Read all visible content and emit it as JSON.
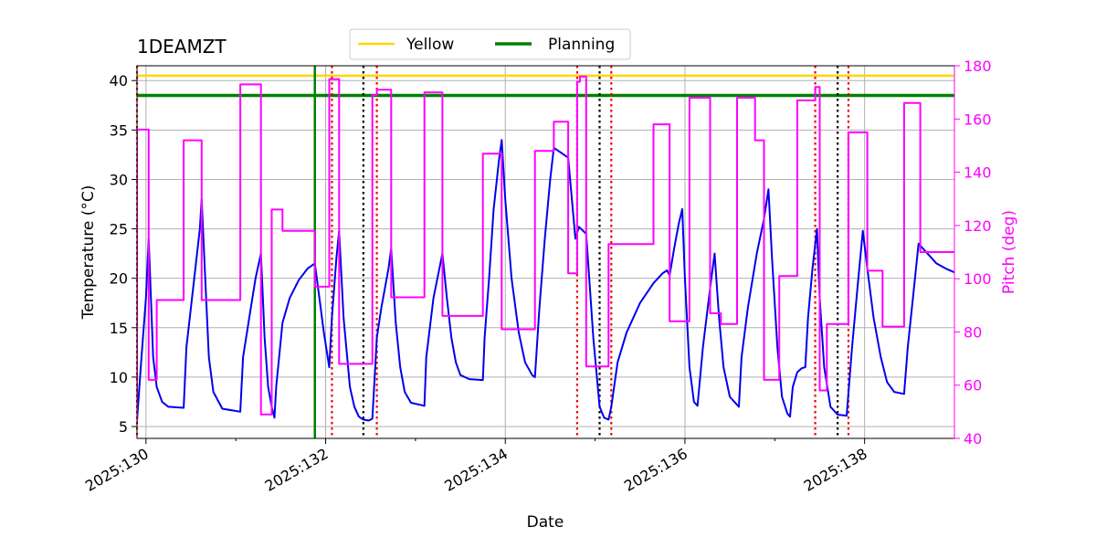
{
  "chart_data": {
    "type": "line",
    "title": "1DEAMZT",
    "xlabel": "Date",
    "ylabel": "Temperature ($^\\circ$C)",
    "ylabel_display": "Temperature (°C)",
    "y2label": "Pitch (deg)",
    "xlim": [
      129.9,
      139.0
    ],
    "ylim": [
      3.8,
      41.5
    ],
    "y2lim": [
      40,
      180
    ],
    "x_ticks": [
      {
        "value": 130,
        "label": "2025:130"
      },
      {
        "value": 132,
        "label": "2025:132"
      },
      {
        "value": 134,
        "label": "2025:134"
      },
      {
        "value": 136,
        "label": "2025:136"
      },
      {
        "value": 138,
        "label": "2025:138"
      }
    ],
    "x_minor_ticks": [
      131,
      133,
      135,
      137
    ],
    "y_ticks": [
      5,
      10,
      15,
      20,
      25,
      30,
      35,
      40
    ],
    "y2_ticks": [
      40,
      60,
      80,
      100,
      120,
      140,
      160,
      180
    ],
    "grid": true,
    "legend": {
      "placement": "top-center, above axes",
      "entries": [
        {
          "label": "Yellow",
          "color": "#ffd700"
        },
        {
          "label": "Planning",
          "color": "#008000"
        }
      ]
    },
    "limits": {
      "yellow": 40.5,
      "planning": 38.5
    },
    "planning_vline": 131.88,
    "red_dotted_vlines": [
      129.9,
      132.07,
      132.57,
      134.8,
      135.18,
      137.45,
      137.82
    ],
    "black_dotted_vlines": [
      132.42,
      135.05,
      137.7
    ],
    "series": [
      {
        "name": "Temperature",
        "axis": "left",
        "color": "#0000ee",
        "points": [
          [
            129.9,
            5.6
          ],
          [
            129.95,
            12.0
          ],
          [
            130.0,
            18.0
          ],
          [
            130.03,
            24.0
          ],
          [
            130.08,
            12.0
          ],
          [
            130.12,
            9.0
          ],
          [
            130.18,
            7.5
          ],
          [
            130.25,
            7.0
          ],
          [
            130.42,
            6.9
          ],
          [
            130.45,
            13.0
          ],
          [
            130.5,
            17.0
          ],
          [
            130.55,
            21.0
          ],
          [
            130.6,
            25.0
          ],
          [
            130.62,
            28.0
          ],
          [
            130.66,
            20.0
          ],
          [
            130.7,
            12.0
          ],
          [
            130.75,
            8.5
          ],
          [
            130.85,
            6.8
          ],
          [
            131.05,
            6.5
          ],
          [
            131.08,
            12.0
          ],
          [
            131.15,
            16.0
          ],
          [
            131.22,
            20.0
          ],
          [
            131.28,
            22.5
          ],
          [
            131.32,
            14.0
          ],
          [
            131.36,
            9.0
          ],
          [
            131.4,
            7.0
          ],
          [
            131.43,
            5.9
          ],
          [
            131.45,
            9.0
          ],
          [
            131.52,
            15.5
          ],
          [
            131.6,
            18.0
          ],
          [
            131.7,
            19.8
          ],
          [
            131.8,
            21.0
          ],
          [
            131.88,
            21.5
          ],
          [
            131.93,
            18.0
          ],
          [
            131.98,
            14.5
          ],
          [
            132.04,
            11.0
          ],
          [
            132.07,
            16.0
          ],
          [
            132.12,
            22.0
          ],
          [
            132.15,
            24.8
          ],
          [
            132.2,
            16.0
          ],
          [
            132.27,
            9.0
          ],
          [
            132.32,
            7.0
          ],
          [
            132.37,
            6.0
          ],
          [
            132.42,
            5.7
          ],
          [
            132.48,
            5.6
          ],
          [
            132.52,
            5.8
          ],
          [
            132.57,
            14.0
          ],
          [
            132.62,
            17.0
          ],
          [
            132.7,
            21.0
          ],
          [
            132.73,
            23.0
          ],
          [
            132.78,
            15.5
          ],
          [
            132.83,
            11.0
          ],
          [
            132.88,
            8.5
          ],
          [
            132.95,
            7.4
          ],
          [
            133.1,
            7.1
          ],
          [
            133.12,
            12.0
          ],
          [
            133.2,
            18.0
          ],
          [
            133.3,
            22.5
          ],
          [
            133.35,
            18.0
          ],
          [
            133.4,
            14.0
          ],
          [
            133.45,
            11.5
          ],
          [
            133.5,
            10.2
          ],
          [
            133.6,
            9.8
          ],
          [
            133.75,
            9.7
          ],
          [
            133.77,
            14.0
          ],
          [
            133.82,
            20.0
          ],
          [
            133.87,
            27.0
          ],
          [
            133.93,
            32.0
          ],
          [
            133.96,
            34.0
          ],
          [
            134.0,
            28.0
          ],
          [
            134.07,
            20.0
          ],
          [
            134.15,
            14.5
          ],
          [
            134.22,
            11.5
          ],
          [
            134.3,
            10.2
          ],
          [
            134.33,
            10.0
          ],
          [
            134.38,
            17.0
          ],
          [
            134.44,
            24.0
          ],
          [
            134.5,
            30.0
          ],
          [
            134.54,
            33.2
          ],
          [
            134.7,
            32.2
          ],
          [
            134.78,
            24.0
          ],
          [
            134.82,
            25.2
          ],
          [
            134.9,
            24.5
          ],
          [
            134.98,
            14.0
          ],
          [
            135.05,
            7.0
          ],
          [
            135.1,
            5.9
          ],
          [
            135.15,
            5.7
          ],
          [
            135.18,
            7.0
          ],
          [
            135.25,
            11.5
          ],
          [
            135.35,
            14.5
          ],
          [
            135.5,
            17.5
          ],
          [
            135.65,
            19.5
          ],
          [
            135.75,
            20.5
          ],
          [
            135.8,
            20.8
          ],
          [
            135.83,
            20.3
          ],
          [
            135.88,
            23.0
          ],
          [
            135.93,
            25.5
          ],
          [
            135.97,
            27.0
          ],
          [
            136.0,
            20.0
          ],
          [
            136.05,
            11.0
          ],
          [
            136.1,
            7.5
          ],
          [
            136.14,
            7.1
          ],
          [
            136.2,
            13.0
          ],
          [
            136.28,
            19.0
          ],
          [
            136.33,
            22.5
          ],
          [
            136.38,
            16.0
          ],
          [
            136.43,
            11.0
          ],
          [
            136.5,
            8.0
          ],
          [
            136.6,
            7.0
          ],
          [
            136.63,
            12.0
          ],
          [
            136.7,
            17.0
          ],
          [
            136.8,
            22.5
          ],
          [
            136.88,
            26.0
          ],
          [
            136.93,
            29.0
          ],
          [
            136.97,
            22.0
          ],
          [
            137.03,
            13.0
          ],
          [
            137.08,
            8.0
          ],
          [
            137.14,
            6.3
          ],
          [
            137.17,
            6.0
          ],
          [
            137.2,
            9.0
          ],
          [
            137.25,
            10.5
          ],
          [
            137.3,
            10.9
          ],
          [
            137.34,
            11.0
          ],
          [
            137.37,
            16.0
          ],
          [
            137.42,
            21.0
          ],
          [
            137.47,
            25.0
          ],
          [
            137.5,
            18.0
          ],
          [
            137.55,
            11.0
          ],
          [
            137.62,
            7.0
          ],
          [
            137.7,
            6.2
          ],
          [
            137.8,
            6.1
          ],
          [
            137.86,
            13.0
          ],
          [
            137.92,
            19.0
          ],
          [
            137.98,
            24.8
          ],
          [
            138.03,
            21.0
          ],
          [
            138.1,
            16.0
          ],
          [
            138.18,
            12.0
          ],
          [
            138.25,
            9.5
          ],
          [
            138.33,
            8.5
          ],
          [
            138.44,
            8.3
          ],
          [
            138.48,
            13.0
          ],
          [
            138.55,
            19.0
          ],
          [
            138.6,
            23.5
          ],
          [
            138.7,
            22.5
          ],
          [
            138.8,
            21.5
          ],
          [
            138.9,
            21.0
          ],
          [
            139.0,
            20.6
          ]
        ]
      },
      {
        "name": "Pitch",
        "axis": "right",
        "color": "#ff00ff",
        "points": [
          [
            129.9,
            46
          ],
          [
            129.9,
            156
          ],
          [
            130.03,
            156
          ],
          [
            130.03,
            62
          ],
          [
            130.12,
            62
          ],
          [
            130.12,
            92
          ],
          [
            130.42,
            92
          ],
          [
            130.42,
            152
          ],
          [
            130.62,
            152
          ],
          [
            130.62,
            92
          ],
          [
            131.05,
            92
          ],
          [
            131.05,
            173
          ],
          [
            131.28,
            173
          ],
          [
            131.28,
            49
          ],
          [
            131.4,
            49
          ],
          [
            131.4,
            126
          ],
          [
            131.52,
            126
          ],
          [
            131.52,
            118
          ],
          [
            131.88,
            118
          ],
          [
            131.88,
            97
          ],
          [
            132.04,
            97
          ],
          [
            132.04,
            175
          ],
          [
            132.15,
            175
          ],
          [
            132.15,
            68
          ],
          [
            132.52,
            68
          ],
          [
            132.52,
            169
          ],
          [
            132.57,
            169
          ],
          [
            132.57,
            171
          ],
          [
            132.73,
            171
          ],
          [
            132.73,
            93
          ],
          [
            133.1,
            93
          ],
          [
            133.1,
            170
          ],
          [
            133.3,
            170
          ],
          [
            133.3,
            86
          ],
          [
            133.75,
            86
          ],
          [
            133.75,
            147
          ],
          [
            133.96,
            147
          ],
          [
            133.96,
            81
          ],
          [
            134.33,
            81
          ],
          [
            134.33,
            148
          ],
          [
            134.54,
            148
          ],
          [
            134.54,
            159
          ],
          [
            134.7,
            159
          ],
          [
            134.7,
            102
          ],
          [
            134.8,
            102
          ],
          [
            134.8,
            174
          ],
          [
            134.83,
            174
          ],
          [
            134.83,
            176
          ],
          [
            134.9,
            176
          ],
          [
            134.9,
            67
          ],
          [
            135.15,
            67
          ],
          [
            135.15,
            113
          ],
          [
            135.65,
            113
          ],
          [
            135.65,
            158
          ],
          [
            135.83,
            158
          ],
          [
            135.83,
            84
          ],
          [
            136.05,
            84
          ],
          [
            136.05,
            168
          ],
          [
            136.28,
            168
          ],
          [
            136.28,
            87
          ],
          [
            136.4,
            87
          ],
          [
            136.4,
            83
          ],
          [
            136.58,
            83
          ],
          [
            136.58,
            168
          ],
          [
            136.78,
            168
          ],
          [
            136.78,
            152
          ],
          [
            136.88,
            152
          ],
          [
            136.88,
            62
          ],
          [
            137.05,
            62
          ],
          [
            137.05,
            101
          ],
          [
            137.25,
            101
          ],
          [
            137.25,
            167
          ],
          [
            137.45,
            167
          ],
          [
            137.45,
            172
          ],
          [
            137.5,
            172
          ],
          [
            137.5,
            58
          ],
          [
            137.58,
            58
          ],
          [
            137.58,
            83
          ],
          [
            137.82,
            83
          ],
          [
            137.82,
            155
          ],
          [
            138.03,
            155
          ],
          [
            138.03,
            103
          ],
          [
            138.2,
            103
          ],
          [
            138.2,
            82
          ],
          [
            138.44,
            82
          ],
          [
            138.44,
            166
          ],
          [
            138.62,
            166
          ],
          [
            138.62,
            110
          ],
          [
            139.0,
            110
          ]
        ]
      }
    ]
  }
}
